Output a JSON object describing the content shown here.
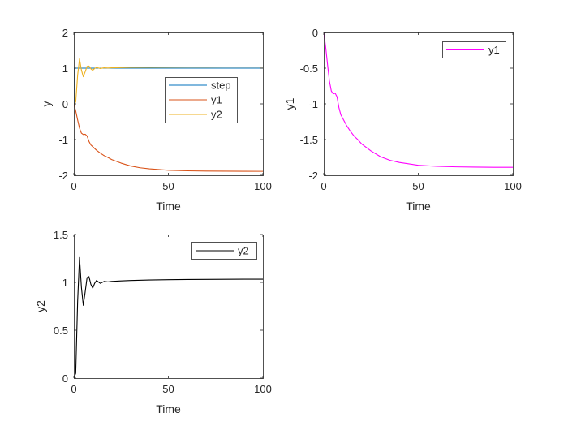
{
  "figure": {
    "background": "#ffffff",
    "axis_color": "#262626"
  },
  "chart_data": [
    {
      "type": "line",
      "id": "subplot-1",
      "title": "",
      "xlabel": "Time",
      "ylabel": "y",
      "xlim": [
        0,
        100
      ],
      "ylim": [
        -2,
        2
      ],
      "xticks": [
        0,
        50,
        100
      ],
      "yticks": [
        -2,
        -1,
        0,
        1,
        2
      ],
      "grid": false,
      "legend": "upper-right-center",
      "series": [
        {
          "name": "step",
          "color": "#0072BD",
          "x": [
            0,
            0.01,
            100
          ],
          "y": [
            0,
            1,
            1
          ]
        },
        {
          "name": "y1",
          "color": "#D95319",
          "x": [
            0,
            1,
            2,
            3,
            4,
            5,
            6,
            7,
            8,
            9,
            10,
            12,
            14,
            16,
            18,
            20,
            25,
            30,
            35,
            40,
            50,
            60,
            70,
            80,
            90,
            100
          ],
          "y": [
            0,
            -0.2,
            -0.45,
            -0.68,
            -0.82,
            -0.86,
            -0.85,
            -0.9,
            -1.05,
            -1.15,
            -1.2,
            -1.3,
            -1.38,
            -1.45,
            -1.5,
            -1.56,
            -1.66,
            -1.74,
            -1.79,
            -1.82,
            -1.86,
            -1.875,
            -1.882,
            -1.886,
            -1.888,
            -1.889
          ]
        },
        {
          "name": "y2",
          "color": "#EDB120",
          "x": [
            0,
            1,
            2,
            3,
            4,
            5,
            6,
            7,
            8,
            9,
            10,
            11,
            12,
            14,
            16,
            18,
            20,
            25,
            30,
            40,
            50,
            60,
            70,
            80,
            90,
            100
          ],
          "y": [
            0,
            0.05,
            0.8,
            1.26,
            0.95,
            0.76,
            0.9,
            1.05,
            1.06,
            0.98,
            0.94,
            0.99,
            1.02,
            0.99,
            1.01,
            1.005,
            1.01,
            1.015,
            1.02,
            1.025,
            1.028,
            1.03,
            1.031,
            1.032,
            1.033,
            1.033
          ]
        }
      ]
    },
    {
      "type": "line",
      "id": "subplot-2",
      "title": "",
      "xlabel": "Time",
      "ylabel": "y1",
      "xlim": [
        0,
        100
      ],
      "ylim": [
        -2,
        0
      ],
      "xticks": [
        0,
        50,
        100
      ],
      "yticks": [
        -2,
        -1.5,
        -1,
        -0.5,
        0
      ],
      "ytick_labels": [
        "-2",
        "-1.5",
        "-1",
        "-0.5",
        "0"
      ],
      "grid": false,
      "legend": "top-right",
      "series": [
        {
          "name": "y1",
          "color": "#FF00FF",
          "x": [
            0,
            1,
            2,
            3,
            4,
            5,
            6,
            7,
            8,
            9,
            10,
            12,
            14,
            16,
            18,
            20,
            25,
            30,
            35,
            40,
            50,
            60,
            70,
            80,
            90,
            100
          ],
          "y": [
            0,
            -0.2,
            -0.45,
            -0.68,
            -0.82,
            -0.86,
            -0.85,
            -0.9,
            -1.05,
            -1.15,
            -1.2,
            -1.3,
            -1.38,
            -1.45,
            -1.5,
            -1.56,
            -1.66,
            -1.74,
            -1.79,
            -1.82,
            -1.86,
            -1.875,
            -1.882,
            -1.886,
            -1.888,
            -1.889
          ]
        }
      ]
    },
    {
      "type": "line",
      "id": "subplot-3",
      "title": "",
      "xlabel": "Time",
      "ylabel": "y2",
      "xlim": [
        0,
        100
      ],
      "ylim": [
        0,
        1.5
      ],
      "xticks": [
        0,
        50,
        100
      ],
      "yticks": [
        0,
        0.5,
        1,
        1.5
      ],
      "ytick_labels": [
        "0",
        "0.5",
        "1",
        "1.5"
      ],
      "grid": false,
      "legend": "top-right",
      "series": [
        {
          "name": "y2",
          "color": "#000000",
          "x": [
            0,
            1,
            2,
            3,
            4,
            5,
            6,
            7,
            8,
            9,
            10,
            11,
            12,
            14,
            16,
            18,
            20,
            25,
            30,
            40,
            50,
            60,
            70,
            80,
            90,
            100
          ],
          "y": [
            0,
            0.05,
            0.8,
            1.26,
            0.95,
            0.76,
            0.9,
            1.05,
            1.06,
            0.98,
            0.94,
            0.99,
            1.02,
            0.99,
            1.01,
            1.005,
            1.01,
            1.015,
            1.02,
            1.025,
            1.028,
            1.03,
            1.031,
            1.032,
            1.033,
            1.033
          ]
        }
      ]
    }
  ]
}
